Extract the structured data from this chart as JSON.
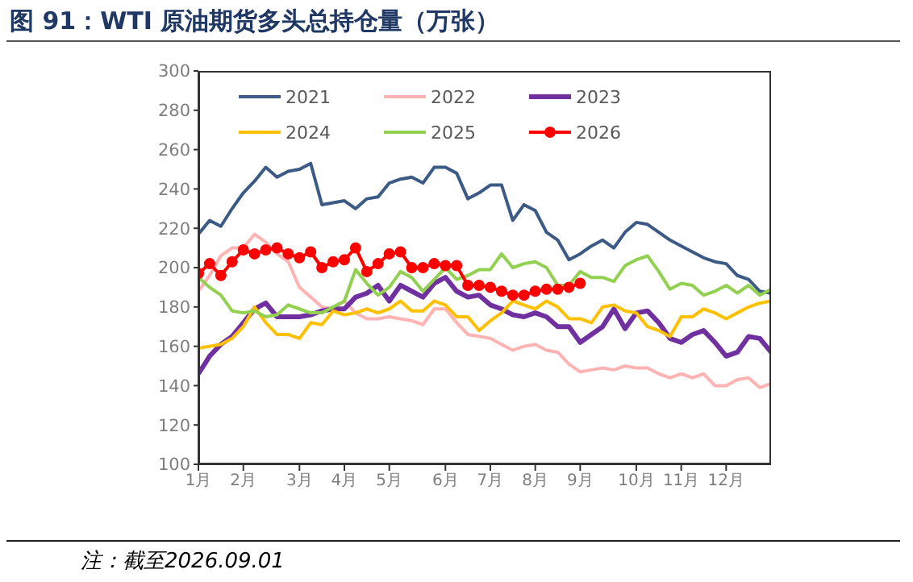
{
  "chart_data": {
    "type": "line",
    "title": "图 91：WTI 原油期货多头总持仓量（万张）",
    "categories": [
      "1月",
      null,
      null,
      null,
      "2月",
      null,
      null,
      null,
      null,
      "3月",
      null,
      null,
      null,
      "4月",
      null,
      null,
      null,
      "5月",
      null,
      null,
      null,
      null,
      "6月",
      null,
      null,
      null,
      "7月",
      null,
      null,
      null,
      "8月",
      null,
      null,
      null,
      "9月",
      null,
      null,
      null,
      null,
      "10月",
      null,
      null,
      null,
      "11月",
      null,
      null,
      null,
      "12月",
      null,
      null,
      null,
      null
    ],
    "ylim": [
      100,
      300
    ],
    "yticks": [
      100,
      120,
      140,
      160,
      180,
      200,
      220,
      240,
      260,
      280,
      300
    ],
    "grid": false,
    "legend": "top",
    "line_style": "solid",
    "series": [
      {
        "name": "2021",
        "color": "#3b5a86",
        "marker": "none",
        "values": [
          217,
          224,
          221,
          230,
          238,
          244,
          251,
          246,
          249,
          250,
          253,
          232,
          233,
          234,
          230,
          235,
          236,
          243,
          245,
          246,
          243,
          251,
          251,
          248,
          235,
          238,
          242,
          242,
          224,
          232,
          229,
          218,
          214,
          204,
          207,
          211,
          214,
          210,
          218,
          223,
          222,
          218,
          214,
          211,
          208,
          205,
          203,
          202,
          196,
          194,
          188,
          187
        ]
      },
      {
        "name": "2022",
        "color": "#ffb3b3",
        "marker": "none",
        "values": [
          188,
          196,
          206,
          210,
          210,
          217,
          213,
          207,
          203,
          190,
          185,
          180,
          179,
          183,
          177,
          174,
          174,
          175,
          174,
          173,
          171,
          179,
          179,
          172,
          166,
          165,
          164,
          161,
          158,
          160,
          161,
          158,
          157,
          151,
          147,
          148,
          149,
          148,
          150,
          149,
          149,
          146,
          144,
          146,
          144,
          146,
          140,
          140,
          143,
          144,
          139,
          141
        ]
      },
      {
        "name": "2023",
        "color": "#7030a0",
        "marker": "none",
        "values": [
          146,
          155,
          161,
          165,
          172,
          179,
          182,
          175,
          175,
          175,
          176,
          178,
          179,
          179,
          185,
          187,
          191,
          183,
          191,
          188,
          185,
          192,
          195,
          188,
          185,
          186,
          181,
          179,
          176,
          175,
          177,
          175,
          170,
          170,
          162,
          166,
          170,
          179,
          169,
          177,
          178,
          172,
          164,
          162,
          166,
          168,
          162,
          155,
          157,
          165,
          164,
          157
        ]
      },
      {
        "name": "2024",
        "color": "#ffc000",
        "marker": "none",
        "values": [
          159,
          160,
          161,
          164,
          170,
          180,
          172,
          166,
          166,
          164,
          172,
          171,
          178,
          176,
          177,
          179,
          177,
          179,
          183,
          178,
          178,
          183,
          181,
          175,
          175,
          168,
          173,
          177,
          183,
          181,
          179,
          183,
          180,
          174,
          174,
          172,
          180,
          181,
          178,
          177,
          170,
          168,
          165,
          175,
          175,
          179,
          177,
          174,
          177,
          180,
          182,
          183
        ]
      },
      {
        "name": "2025",
        "color": "#92d050",
        "marker": "none",
        "values": [
          195,
          190,
          186,
          178,
          177,
          178,
          175,
          176,
          181,
          179,
          177,
          177,
          180,
          183,
          199,
          192,
          186,
          190,
          198,
          195,
          188,
          194,
          200,
          194,
          196,
          199,
          199,
          207,
          200,
          202,
          203,
          200,
          191,
          191,
          198,
          195,
          195,
          193,
          201,
          204,
          206,
          198,
          189,
          192,
          191,
          186,
          188,
          191,
          187,
          191,
          186,
          189
        ]
      },
      {
        "name": "2026",
        "color": "#ff0000",
        "marker": "circle",
        "values": [
          197,
          202,
          196,
          203,
          209,
          207,
          209,
          210,
          207,
          205,
          208,
          200,
          203,
          204,
          210,
          198,
          202,
          207,
          208,
          200,
          200,
          202,
          201,
          201,
          191,
          191,
          190,
          188,
          186,
          186,
          188,
          189,
          189,
          190,
          192,
          null,
          null,
          null,
          null,
          null,
          null,
          null,
          null,
          null,
          null,
          null,
          null,
          null,
          null,
          null,
          null,
          null
        ]
      }
    ],
    "annotations": [
      "注：截至2026.09.01"
    ]
  }
}
